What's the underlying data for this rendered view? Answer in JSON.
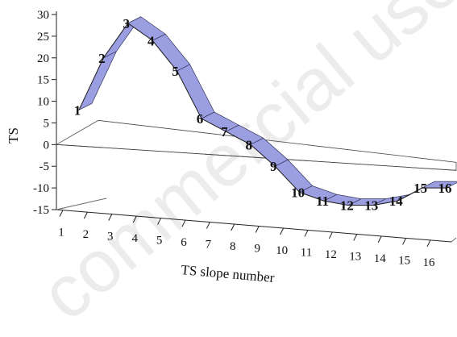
{
  "watermark": "commercial use",
  "chart_data": {
    "type": "line",
    "style": "3d-ribbon",
    "xlabel": "TS slope number",
    "ylabel": "TS",
    "categories": [
      "1",
      "2",
      "3",
      "4",
      "5",
      "6",
      "7",
      "8",
      "9",
      "10",
      "11",
      "12",
      "13",
      "14",
      "15",
      "16"
    ],
    "x": [
      1,
      2,
      3,
      4,
      5,
      6,
      7,
      8,
      9,
      10,
      11,
      12,
      13,
      14,
      15,
      16
    ],
    "series": [
      {
        "values": [
          8,
          20,
          28,
          24,
          17,
          6,
          3,
          0,
          -5,
          -11,
          -13,
          -14,
          -14,
          -13,
          -10,
          -10
        ]
      }
    ],
    "point_labels": [
      "1",
      "2",
      "3",
      "4",
      "5",
      "6",
      "7",
      "8",
      "9",
      "10",
      "11",
      "12",
      "13",
      "14",
      "15",
      "16"
    ],
    "ylim": [
      -15,
      30
    ],
    "yticks": [
      "30",
      "25",
      "20",
      "15",
      "10",
      "5",
      "0",
      "-5",
      "-10",
      "-15"
    ],
    "grid": false,
    "zero_plane": true,
    "ribbon_color": "#9b9fe2",
    "ribbon_edge_color": "#33345a"
  }
}
